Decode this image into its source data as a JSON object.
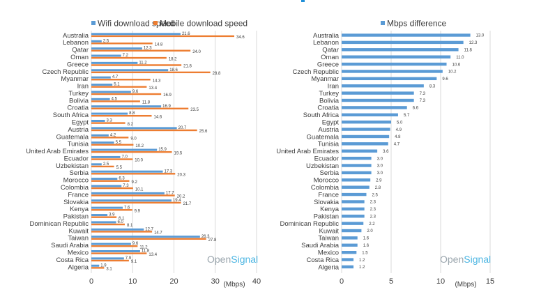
{
  "colors": {
    "wifi": "#5b9bd5",
    "mobile": "#ed7d31",
    "diff": "#5b9bd5",
    "grid": "#d9d9d9",
    "accent": "#1f8fd8"
  },
  "watermark": {
    "part1": "Open",
    "part2": "Signal"
  },
  "chart_data": [
    {
      "type": "bar",
      "orientation": "horizontal",
      "categories": [
        "Australia",
        "Lebanon",
        "Qatar",
        "Oman",
        "Greece",
        "Czech Republic",
        "Myanmar",
        "Iran",
        "Turkey",
        "Bolivia",
        "Croatia",
        "South Africa",
        "Egypt",
        "Austria",
        "Guatemala",
        "Tunisia",
        "United Arab Emirates",
        "Ecuador",
        "Uzbekistan",
        "Serbia",
        "Morocco",
        "Colombia",
        "France",
        "Slovakia",
        "Kenya",
        "Pakistan",
        "Dominican Republic",
        "Kuwait",
        "Taiwan",
        "Saudi Arabia",
        "Mexico",
        "Costa Rica",
        "Algeria"
      ],
      "series": [
        {
          "name": "Wifi download speed",
          "values": [
            21.6,
            2.5,
            12.3,
            7.2,
            11.2,
            18.6,
            4.7,
            5.1,
            9.6,
            4.5,
            16.9,
            8.8,
            3.3,
            20.7,
            4.2,
            5.5,
            15.9,
            7.0,
            2.5,
            17.3,
            6.3,
            7.3,
            17.7,
            19.4,
            7.6,
            3.9,
            6.0,
            12.7,
            26.3,
            9.6,
            11.8,
            7.9,
            1.9
          ]
        },
        {
          "name": "Mobile download speed",
          "values": [
            34.6,
            14.8,
            24.0,
            18.2,
            21.8,
            28.8,
            14.3,
            13.4,
            16.9,
            11.8,
            23.5,
            14.6,
            8.2,
            25.6,
            9.0,
            10.2,
            19.5,
            10.0,
            5.5,
            20.3,
            9.2,
            10.1,
            20.2,
            21.7,
            9.9,
            6.1,
            8.1,
            14.7,
            27.8,
            11.2,
            13.4,
            9.1,
            3.1
          ]
        }
      ],
      "xlabel": "(Mbps)",
      "xlim": [
        0,
        40
      ],
      "xticks": [
        "0",
        "10",
        "20",
        "30",
        "40"
      ],
      "legend_position": "top",
      "grid": true
    },
    {
      "type": "bar",
      "orientation": "horizontal",
      "categories": [
        "Australia",
        "Lebanon",
        "Qatar",
        "Oman",
        "Greece",
        "Czech Republic",
        "Myanmar",
        "Iran",
        "Turkey",
        "Bolivia",
        "Croatia",
        "South Africa",
        "Egypt",
        "Austria",
        "Guatemala",
        "Tunisia",
        "United Arab Emirates",
        "Ecuador",
        "Uzbekistan",
        "Serbia",
        "Morocco",
        "Colombia",
        "France",
        "Slovakia",
        "Kenya",
        "Pakistan",
        "Dominican Republic",
        "Kuwait",
        "Taiwan",
        "Saudi Arabia",
        "Mexico",
        "Costa Rica",
        "Algeria"
      ],
      "series": [
        {
          "name": "Mbps difference",
          "values": [
            13.0,
            12.3,
            11.8,
            11.0,
            10.6,
            10.2,
            9.6,
            8.3,
            7.3,
            7.3,
            6.6,
            5.7,
            5.0,
            4.9,
            4.8,
            4.7,
            3.6,
            3.0,
            3.0,
            3.0,
            2.9,
            2.8,
            2.5,
            2.3,
            2.3,
            2.3,
            2.2,
            2.0,
            1.6,
            1.6,
            1.5,
            1.2,
            1.2
          ]
        }
      ],
      "xlabel": "(Mbps)",
      "xlim": [
        0,
        15
      ],
      "xticks": [
        "0",
        "5",
        "10",
        "15"
      ],
      "legend_position": "top",
      "grid": true
    }
  ]
}
